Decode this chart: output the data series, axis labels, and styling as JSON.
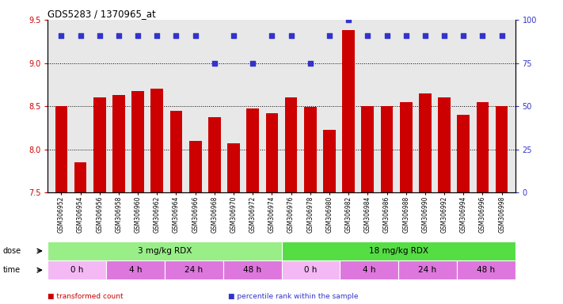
{
  "title": "GDS5283 / 1370965_at",
  "samples": [
    "GSM306952",
    "GSM306954",
    "GSM306956",
    "GSM306958",
    "GSM306960",
    "GSM306962",
    "GSM306964",
    "GSM306966",
    "GSM306968",
    "GSM306970",
    "GSM306972",
    "GSM306974",
    "GSM306976",
    "GSM306978",
    "GSM306980",
    "GSM306982",
    "GSM306984",
    "GSM306986",
    "GSM306988",
    "GSM306990",
    "GSM306992",
    "GSM306994",
    "GSM306996",
    "GSM306998"
  ],
  "bar_values": [
    8.5,
    7.85,
    8.6,
    8.63,
    8.68,
    8.7,
    8.45,
    8.1,
    8.37,
    8.07,
    8.47,
    8.42,
    8.6,
    8.49,
    8.23,
    9.38,
    8.5,
    8.5,
    8.55,
    8.65,
    8.6,
    8.4,
    8.55,
    8.5
  ],
  "percentile_values": [
    91,
    91,
    91,
    91,
    91,
    91,
    91,
    91,
    75,
    91,
    75,
    91,
    91,
    75,
    91,
    100,
    91,
    91,
    91,
    91,
    91,
    91,
    91,
    91
  ],
  "bar_color": "#cc0000",
  "dot_color": "#3333cc",
  "ylim_left": [
    7.5,
    9.5
  ],
  "ylim_right": [
    0,
    100
  ],
  "yticks_left": [
    7.5,
    8.0,
    8.5,
    9.0,
    9.5
  ],
  "yticks_right": [
    0,
    25,
    50,
    75,
    100
  ],
  "grid_values": [
    8.0,
    8.5,
    9.0
  ],
  "dose_groups": [
    {
      "label": "3 mg/kg RDX",
      "start": 0,
      "end": 12,
      "color": "#99ee88"
    },
    {
      "label": "18 mg/kg RDX",
      "start": 12,
      "end": 24,
      "color": "#55dd44"
    }
  ],
  "time_colors_alt": [
    "#f4b8f4",
    "#dd77dd"
  ],
  "time_groups": [
    {
      "label": "0 h",
      "start": 0,
      "end": 3,
      "alt": 0
    },
    {
      "label": "4 h",
      "start": 3,
      "end": 6,
      "alt": 1
    },
    {
      "label": "24 h",
      "start": 6,
      "end": 9,
      "alt": 1
    },
    {
      "label": "48 h",
      "start": 9,
      "end": 12,
      "alt": 1
    },
    {
      "label": "0 h",
      "start": 12,
      "end": 15,
      "alt": 0
    },
    {
      "label": "4 h",
      "start": 15,
      "end": 18,
      "alt": 1
    },
    {
      "label": "24 h",
      "start": 18,
      "end": 21,
      "alt": 1
    },
    {
      "label": "48 h",
      "start": 21,
      "end": 24,
      "alt": 1
    }
  ],
  "legend_items": [
    {
      "label": "transformed count",
      "color": "#cc0000"
    },
    {
      "label": "percentile rank within the sample",
      "color": "#3333cc"
    }
  ],
  "bg_color": "#ffffff",
  "plot_bg_color": "#e8e8e8"
}
